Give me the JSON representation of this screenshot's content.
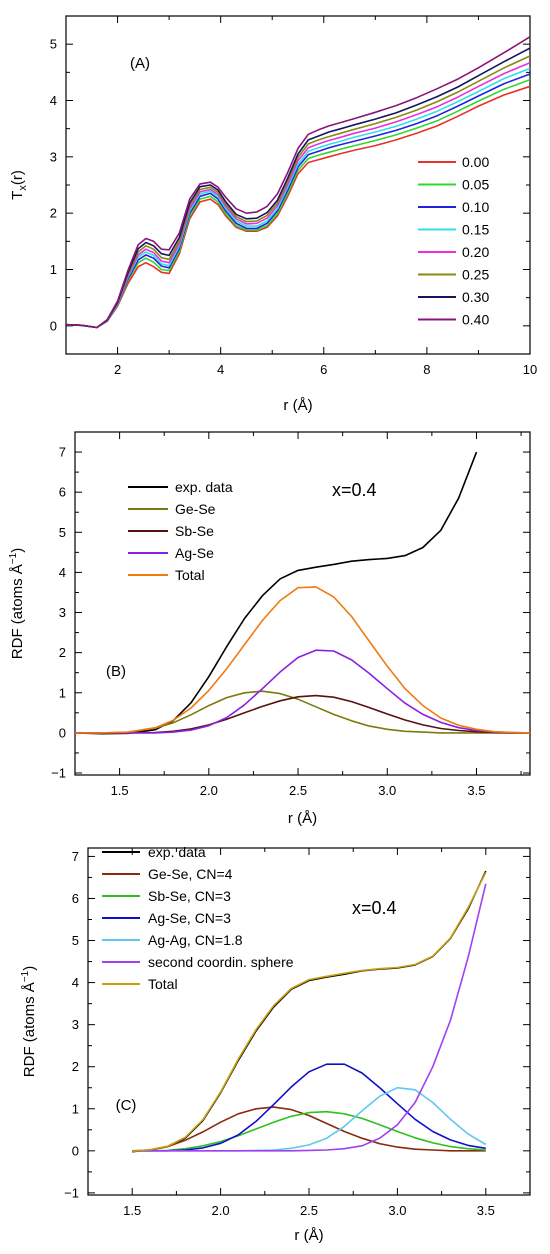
{
  "chart_data": [
    {
      "panel": "A",
      "type": "line",
      "panel_label": "(A)",
      "xlabel": "r (Å)",
      "ylabel": "T",
      "ylabel_sub": "x",
      "ylabel_suffix": "(r)",
      "xlim": [
        1,
        10
      ],
      "ylim": [
        -0.5,
        5.5
      ],
      "xticks": [
        2,
        4,
        6,
        8,
        10
      ],
      "xtick_labels": [
        "2",
        "4",
        "6",
        "8",
        "10"
      ],
      "yticks": [
        0,
        1,
        2,
        3,
        4,
        5
      ],
      "ytick_labels": [
        "0",
        "1",
        "2",
        "3",
        "4",
        "5"
      ],
      "legend_position": "right",
      "grid": false,
      "x": [
        1.0,
        1.3,
        1.6,
        1.8,
        2.0,
        2.2,
        2.4,
        2.55,
        2.7,
        2.85,
        3.0,
        3.2,
        3.4,
        3.6,
        3.8,
        3.95,
        4.1,
        4.3,
        4.5,
        4.7,
        4.9,
        5.1,
        5.3,
        5.5,
        5.7,
        5.9,
        6.1,
        6.3,
        6.6,
        7.0,
        7.4,
        7.8,
        8.2,
        8.6,
        9.0,
        9.5,
        10.0
      ],
      "series": [
        {
          "name": "0.00",
          "color": "#e8312a",
          "values": [
            0.02,
            0.01,
            -0.03,
            0.08,
            0.35,
            0.75,
            1.05,
            1.12,
            1.05,
            0.95,
            0.93,
            1.28,
            1.9,
            2.2,
            2.25,
            2.15,
            1.95,
            1.75,
            1.68,
            1.68,
            1.75,
            1.95,
            2.3,
            2.7,
            2.9,
            2.95,
            3.0,
            3.05,
            3.12,
            3.2,
            3.3,
            3.42,
            3.55,
            3.72,
            3.9,
            4.1,
            4.25
          ]
        },
        {
          "name": "0.05",
          "color": "#30d630",
          "values": [
            0.02,
            0.01,
            -0.03,
            0.09,
            0.37,
            0.8,
            1.12,
            1.2,
            1.13,
            1.0,
            0.98,
            1.33,
            1.95,
            2.25,
            2.3,
            2.2,
            1.99,
            1.78,
            1.7,
            1.7,
            1.78,
            1.99,
            2.35,
            2.76,
            2.97,
            3.03,
            3.08,
            3.13,
            3.2,
            3.29,
            3.39,
            3.51,
            3.64,
            3.81,
            3.99,
            4.2,
            4.37
          ]
        },
        {
          "name": "0.10",
          "color": "#2222e0",
          "values": [
            0.02,
            0.01,
            -0.03,
            0.09,
            0.38,
            0.83,
            1.17,
            1.26,
            1.2,
            1.06,
            1.03,
            1.38,
            2.0,
            2.3,
            2.35,
            2.25,
            2.04,
            1.82,
            1.73,
            1.73,
            1.82,
            2.04,
            2.41,
            2.82,
            3.04,
            3.1,
            3.16,
            3.21,
            3.28,
            3.37,
            3.47,
            3.59,
            3.73,
            3.9,
            4.08,
            4.3,
            4.47
          ]
        },
        {
          "name": "0.15",
          "color": "#30e0e8",
          "values": [
            0.02,
            0.01,
            -0.03,
            0.09,
            0.39,
            0.86,
            1.22,
            1.31,
            1.25,
            1.1,
            1.07,
            1.42,
            2.04,
            2.34,
            2.39,
            2.29,
            2.08,
            1.86,
            1.77,
            1.77,
            1.86,
            2.08,
            2.46,
            2.87,
            3.1,
            3.16,
            3.22,
            3.27,
            3.35,
            3.44,
            3.54,
            3.67,
            3.81,
            3.98,
            4.16,
            4.39,
            4.57
          ]
        },
        {
          "name": "0.20",
          "color": "#e830e0",
          "values": [
            0.02,
            0.01,
            -0.03,
            0.1,
            0.4,
            0.88,
            1.26,
            1.36,
            1.3,
            1.15,
            1.12,
            1.46,
            2.08,
            2.38,
            2.42,
            2.33,
            2.12,
            1.9,
            1.81,
            1.82,
            1.91,
            2.13,
            2.51,
            2.93,
            3.16,
            3.23,
            3.29,
            3.34,
            3.42,
            3.51,
            3.62,
            3.75,
            3.89,
            4.06,
            4.25,
            4.48,
            4.67
          ]
        },
        {
          "name": "0.25",
          "color": "#8a8a10",
          "values": [
            0.02,
            0.01,
            -0.03,
            0.1,
            0.41,
            0.91,
            1.31,
            1.42,
            1.36,
            1.21,
            1.18,
            1.51,
            2.13,
            2.42,
            2.46,
            2.37,
            2.16,
            1.94,
            1.85,
            1.86,
            1.96,
            2.18,
            2.57,
            2.99,
            3.23,
            3.3,
            3.36,
            3.41,
            3.49,
            3.59,
            3.7,
            3.83,
            3.98,
            4.15,
            4.34,
            4.58,
            4.79
          ]
        },
        {
          "name": "0.30",
          "color": "#151560",
          "values": [
            0.02,
            0.01,
            -0.03,
            0.1,
            0.42,
            0.94,
            1.37,
            1.48,
            1.42,
            1.28,
            1.25,
            1.57,
            2.18,
            2.47,
            2.5,
            2.41,
            2.2,
            1.98,
            1.9,
            1.91,
            2.01,
            2.23,
            2.62,
            3.05,
            3.3,
            3.37,
            3.44,
            3.49,
            3.57,
            3.67,
            3.78,
            3.92,
            4.07,
            4.24,
            4.44,
            4.69,
            4.93
          ]
        },
        {
          "name": "0.40",
          "color": "#8a1478",
          "values": [
            0.02,
            0.01,
            -0.03,
            0.11,
            0.44,
            0.98,
            1.44,
            1.55,
            1.5,
            1.36,
            1.35,
            1.65,
            2.25,
            2.52,
            2.55,
            2.46,
            2.28,
            2.08,
            2.0,
            2.02,
            2.12,
            2.34,
            2.72,
            3.15,
            3.4,
            3.48,
            3.55,
            3.6,
            3.68,
            3.79,
            3.91,
            4.05,
            4.21,
            4.38,
            4.58,
            4.85,
            5.13
          ]
        }
      ]
    },
    {
      "panel": "B",
      "type": "line",
      "panel_label": "(B)",
      "annotation": "x=0.4",
      "xlabel": "r (Å)",
      "ylabel": "RDF (atoms Å",
      "ylabel_sup": "−1",
      "ylabel_suffix": ")",
      "xlim": [
        1.25,
        3.8
      ],
      "ylim": [
        -1.05,
        7.5
      ],
      "xticks": [
        1.5,
        2.0,
        2.5,
        3.0,
        3.5
      ],
      "xtick_labels": [
        "1.5",
        "2.0",
        "2.5",
        "3.0",
        "3.5"
      ],
      "yticks": [
        -1,
        0,
        1,
        2,
        3,
        4,
        5,
        6,
        7
      ],
      "ytick_labels": [
        "−1",
        "0",
        "1",
        "2",
        "3",
        "4",
        "5",
        "6",
        "7"
      ],
      "legend_position": "top-left",
      "grid": false,
      "x": [
        1.25,
        1.4,
        1.55,
        1.7,
        1.8,
        1.9,
        2.0,
        2.1,
        2.2,
        2.3,
        2.4,
        2.5,
        2.6,
        2.7,
        2.8,
        2.9,
        3.0,
        3.1,
        3.2,
        3.3,
        3.4,
        3.5,
        3.6,
        3.7,
        3.8
      ],
      "series": [
        {
          "name": "exp. data",
          "color": "#000000",
          "values": [
            0.0,
            -0.02,
            -0.01,
            0.08,
            0.3,
            0.75,
            1.4,
            2.15,
            2.85,
            3.42,
            3.84,
            4.05,
            4.13,
            4.2,
            4.28,
            4.32,
            4.35,
            4.42,
            4.62,
            5.05,
            5.85,
            7.0,
            null,
            null,
            null
          ]
        },
        {
          "name": "Ge-Se",
          "color": "#7a7a10",
          "values": [
            0.0,
            0.0,
            0.02,
            0.12,
            0.25,
            0.45,
            0.68,
            0.88,
            1.0,
            1.04,
            0.98,
            0.84,
            0.65,
            0.46,
            0.3,
            0.17,
            0.09,
            0.04,
            0.02,
            0.0,
            0.0,
            0.0,
            0.0,
            0.0,
            0.0
          ]
        },
        {
          "name": "Sb-Se",
          "color": "#5a1010",
          "values": [
            0.0,
            0.0,
            0.0,
            0.01,
            0.04,
            0.1,
            0.2,
            0.34,
            0.5,
            0.66,
            0.8,
            0.9,
            0.93,
            0.89,
            0.78,
            0.63,
            0.47,
            0.32,
            0.2,
            0.11,
            0.06,
            0.03,
            0.01,
            0.0,
            0.0
          ]
        },
        {
          "name": "Ag-Se",
          "color": "#8a20e0",
          "values": [
            0.0,
            0.0,
            0.0,
            0.0,
            0.02,
            0.07,
            0.18,
            0.38,
            0.7,
            1.1,
            1.52,
            1.88,
            2.06,
            2.04,
            1.82,
            1.48,
            1.1,
            0.74,
            0.46,
            0.26,
            0.13,
            0.06,
            0.02,
            0.01,
            0.0
          ]
        },
        {
          "name": "Total",
          "color": "#f07a10",
          "values": [
            0.0,
            0.0,
            0.02,
            0.13,
            0.31,
            0.62,
            1.06,
            1.6,
            2.2,
            2.8,
            3.3,
            3.62,
            3.64,
            3.39,
            2.9,
            2.28,
            1.66,
            1.1,
            0.68,
            0.37,
            0.19,
            0.09,
            0.03,
            0.01,
            0.0
          ]
        }
      ]
    },
    {
      "panel": "C",
      "type": "line",
      "panel_label": "(C)",
      "annotation": "x=0.4",
      "xlabel": "r (Å)",
      "ylabel": "RDF (atoms Å",
      "ylabel_sup": "−1",
      "ylabel_suffix": ")",
      "xlim": [
        1.25,
        3.75
      ],
      "ylim": [
        -1.05,
        7.2
      ],
      "xticks": [
        1.5,
        2.0,
        2.5,
        3.0,
        3.5
      ],
      "xtick_labels": [
        "1.5",
        "2.0",
        "2.5",
        "3.0",
        "3.5"
      ],
      "yticks": [
        -1,
        0,
        1,
        2,
        3,
        4,
        5,
        6,
        7
      ],
      "ytick_labels": [
        "−1",
        "0",
        "1",
        "2",
        "3",
        "4",
        "5",
        "6",
        "7"
      ],
      "legend_position": "top-left",
      "grid": false,
      "x": [
        1.5,
        1.6,
        1.7,
        1.8,
        1.9,
        2.0,
        2.1,
        2.2,
        2.3,
        2.4,
        2.5,
        2.6,
        2.7,
        2.8,
        2.9,
        3.0,
        3.1,
        3.2,
        3.3,
        3.4,
        3.5
      ],
      "series": [
        {
          "name": "exp. data",
          "color": "#000000",
          "values": [
            -0.02,
            0.02,
            0.1,
            0.3,
            0.72,
            1.38,
            2.15,
            2.85,
            3.42,
            3.84,
            4.05,
            4.13,
            4.2,
            4.28,
            4.32,
            4.35,
            4.42,
            4.62,
            5.05,
            5.75,
            6.65
          ]
        },
        {
          "name": "Ge-Se, CN=4",
          "color": "#8a2a10",
          "values": [
            0.0,
            0.02,
            0.1,
            0.25,
            0.45,
            0.68,
            0.88,
            1.0,
            1.04,
            0.98,
            0.84,
            0.65,
            0.46,
            0.3,
            0.17,
            0.09,
            0.04,
            0.02,
            0.0,
            0.0,
            0.0
          ]
        },
        {
          "name": "Sb-Se, CN=3",
          "color": "#30c020",
          "values": [
            0.0,
            0.0,
            0.01,
            0.05,
            0.12,
            0.22,
            0.36,
            0.52,
            0.68,
            0.82,
            0.91,
            0.93,
            0.88,
            0.77,
            0.62,
            0.46,
            0.31,
            0.19,
            0.1,
            0.05,
            0.02
          ]
        },
        {
          "name": "Ag-Se, CN=3",
          "color": "#1010c8",
          "values": [
            0.0,
            0.0,
            0.0,
            0.02,
            0.07,
            0.18,
            0.38,
            0.7,
            1.1,
            1.52,
            1.88,
            2.06,
            2.06,
            1.85,
            1.5,
            1.12,
            0.75,
            0.46,
            0.26,
            0.13,
            0.06
          ]
        },
        {
          "name": "Ag-Ag, CN=1.8",
          "color": "#60c8f0",
          "values": [
            0.0,
            0.0,
            0.0,
            0.0,
            0.0,
            0.0,
            0.0,
            0.01,
            0.02,
            0.06,
            0.14,
            0.3,
            0.58,
            0.95,
            1.3,
            1.5,
            1.45,
            1.15,
            0.75,
            0.4,
            0.15
          ]
        },
        {
          "name": "second coordin. sphere",
          "color": "#a040f0",
          "values": [
            0.0,
            0.0,
            0.0,
            0.0,
            0.0,
            0.0,
            0.0,
            0.0,
            0.0,
            0.0,
            0.01,
            0.02,
            0.05,
            0.12,
            0.3,
            0.62,
            1.15,
            2.0,
            3.1,
            4.6,
            6.35
          ]
        },
        {
          "name": "Total",
          "color": "#c8a010",
          "values": [
            -0.01,
            0.03,
            0.11,
            0.32,
            0.74,
            1.4,
            2.18,
            2.88,
            3.45,
            3.86,
            4.07,
            4.15,
            4.22,
            4.29,
            4.33,
            4.36,
            4.43,
            4.63,
            5.06,
            5.78,
            6.62
          ]
        }
      ]
    }
  ]
}
